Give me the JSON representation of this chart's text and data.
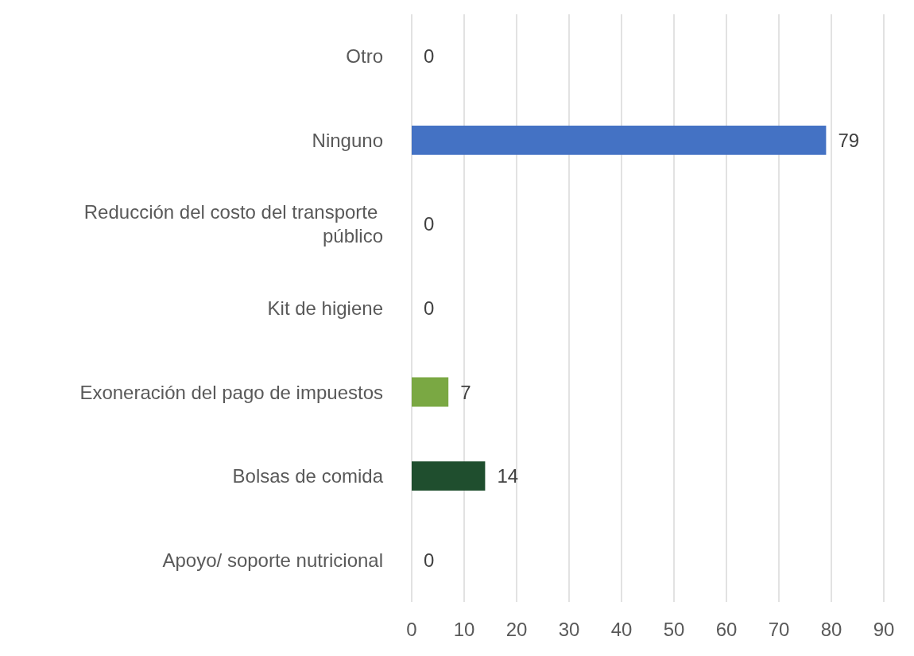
{
  "chart_data": {
    "type": "bar",
    "orientation": "horizontal",
    "categories": [
      "Otro",
      "Ninguno",
      "Reducción del costo del transporte público",
      "Kit de higiene",
      "Exoneración del pago de impuestos",
      "Bolsas de comida",
      "Apoyo/ soporte nutricional"
    ],
    "values": [
      0,
      79,
      0,
      0,
      7,
      14,
      0
    ],
    "colors": [
      "#5b9bd5",
      "#4472c4",
      "#ffc000",
      "#a5a5a5",
      "#7aa843",
      "#1f4e2e",
      "#ed7d31"
    ],
    "xlim": [
      0,
      90
    ],
    "xticks": [
      0,
      10,
      20,
      30,
      40,
      50,
      60,
      70,
      80,
      90
    ],
    "grid": "x",
    "data_labels": true
  }
}
